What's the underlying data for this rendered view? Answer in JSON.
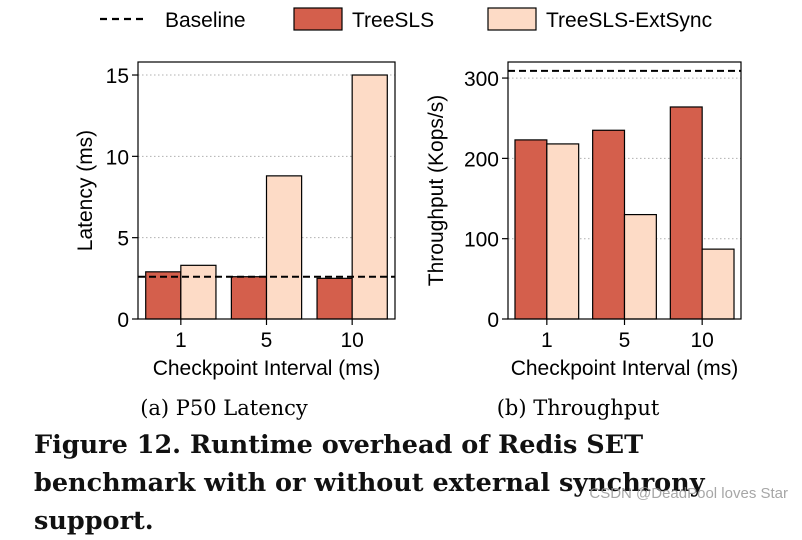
{
  "legend": {
    "items": [
      {
        "label": "Baseline",
        "kind": "dashed-line",
        "color": "#000000"
      },
      {
        "label": "TreeSLS",
        "kind": "patch",
        "color": "#d45f4c"
      },
      {
        "label": "TreeSLS-ExtSync",
        "kind": "patch",
        "color": "#fddbc6"
      }
    ],
    "placement": "top-center"
  },
  "chart_data": [
    {
      "type": "bar",
      "subcaption": "(a) P50 Latency",
      "categories": [
        "1",
        "5",
        "10"
      ],
      "series": [
        {
          "name": "TreeSLS",
          "values": [
            2.9,
            2.6,
            2.5
          ],
          "color": "#d45f4c"
        },
        {
          "name": "TreeSLS-ExtSync",
          "values": [
            3.3,
            8.8,
            15.0
          ],
          "color": "#fddbc6"
        }
      ],
      "baseline": {
        "name": "Baseline",
        "value": 2.6
      },
      "xlabel": "Checkpoint Interval (ms)",
      "ylabel": "Latency (ms)",
      "ylim": [
        0,
        15.8
      ],
      "yticks": [
        0,
        5,
        10,
        15
      ],
      "grid": "horizontal-dotted"
    },
    {
      "type": "bar",
      "subcaption": "(b) Throughput",
      "categories": [
        "1",
        "5",
        "10"
      ],
      "series": [
        {
          "name": "TreeSLS",
          "values": [
            223,
            235,
            264
          ],
          "color": "#d45f4c"
        },
        {
          "name": "TreeSLS-ExtSync",
          "values": [
            218,
            130,
            87
          ],
          "color": "#fddbc6"
        }
      ],
      "baseline": {
        "name": "Baseline",
        "value": 309
      },
      "xlabel": "Checkpoint Interval (ms)",
      "ylabel": "Throughput (Kops/s)",
      "ylim": [
        0,
        320
      ],
      "yticks": [
        0,
        100,
        200,
        300
      ],
      "grid": "horizontal-dotted"
    }
  ],
  "caption": "Figure 12. Runtime overhead of Redis SET benchmark with or without external synchrony support.",
  "watermark": "CSDN @DeadPool loves Star"
}
